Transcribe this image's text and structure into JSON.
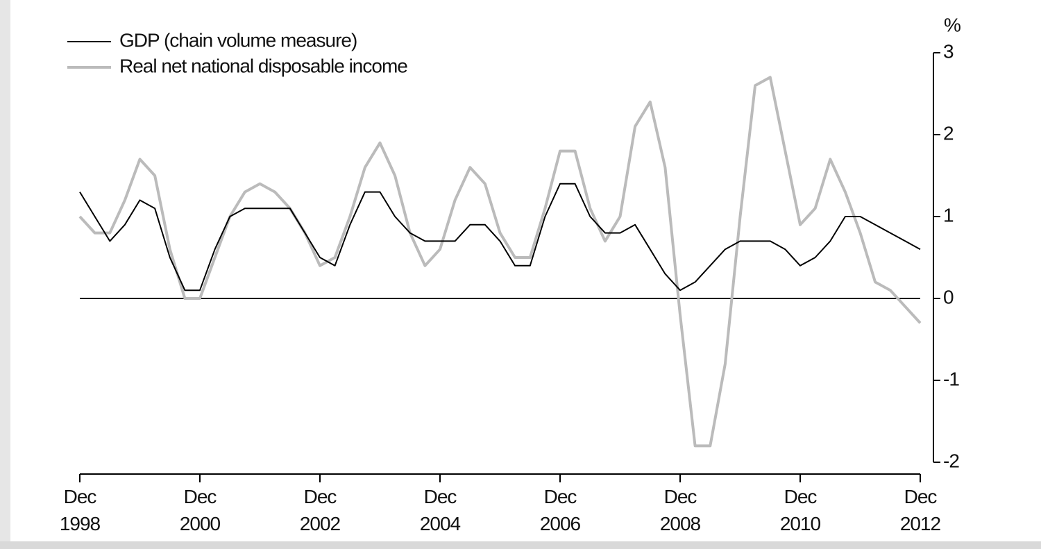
{
  "chart_data": {
    "type": "line",
    "unit_label": "%",
    "categories": [
      "Dec 1998",
      null,
      null,
      null,
      null,
      null,
      null,
      null,
      "Dec 2000",
      null,
      null,
      null,
      null,
      null,
      null,
      null,
      "Dec 2002",
      null,
      null,
      null,
      null,
      null,
      null,
      null,
      "Dec 2004",
      null,
      null,
      null,
      null,
      null,
      null,
      null,
      "Dec 2006",
      null,
      null,
      null,
      null,
      null,
      null,
      null,
      "Dec 2008",
      null,
      null,
      null,
      null,
      null,
      null,
      null,
      "Dec 2010",
      null,
      null,
      null,
      null,
      null,
      null,
      null,
      "Dec 2012"
    ],
    "series": [
      {
        "name": "GDP (chain volume measure)",
        "color": "#000000",
        "values": [
          1.3,
          1.0,
          0.7,
          0.9,
          1.2,
          1.1,
          0.5,
          0.1,
          0.1,
          0.6,
          1.0,
          1.1,
          1.1,
          1.1,
          1.1,
          0.8,
          0.5,
          0.4,
          0.9,
          1.3,
          1.3,
          1.0,
          0.8,
          0.7,
          0.7,
          0.7,
          0.9,
          0.9,
          0.7,
          0.4,
          0.4,
          1.0,
          1.4,
          1.4,
          1.0,
          0.8,
          0.8,
          0.9,
          0.6,
          0.3,
          0.1,
          0.2,
          0.4,
          0.6,
          0.7,
          0.7,
          0.7,
          0.6,
          0.4,
          0.5,
          0.7,
          1.0,
          1.0,
          0.9,
          0.8,
          0.7,
          0.6
        ]
      },
      {
        "name": "Real net national disposable income",
        "color": "#bbbbbb",
        "values": [
          1.0,
          0.8,
          0.8,
          1.2,
          1.7,
          1.5,
          0.6,
          0.0,
          0.0,
          0.5,
          1.0,
          1.3,
          1.4,
          1.3,
          1.1,
          0.8,
          0.4,
          0.5,
          1.0,
          1.6,
          1.9,
          1.5,
          0.8,
          0.4,
          0.6,
          1.2,
          1.6,
          1.4,
          0.8,
          0.5,
          0.5,
          1.1,
          1.8,
          1.8,
          1.1,
          0.7,
          1.0,
          2.1,
          2.4,
          1.6,
          -0.2,
          -1.8,
          -1.8,
          -0.8,
          1.0,
          2.6,
          2.7,
          1.8,
          0.9,
          1.1,
          1.7,
          1.3,
          0.8,
          0.2,
          0.1,
          -0.1,
          -0.3
        ]
      }
    ],
    "ylim": [
      -2,
      3
    ],
    "yticks": [
      -2,
      -1,
      0,
      1,
      2,
      3
    ]
  }
}
